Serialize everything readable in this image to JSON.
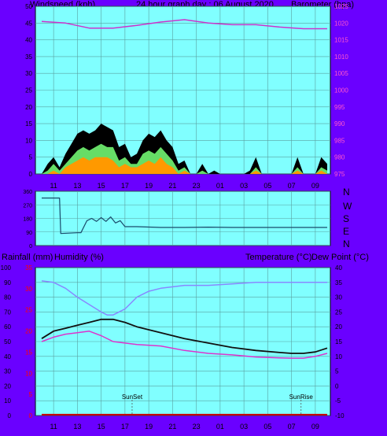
{
  "header": {
    "left": "Windspeed (kph)",
    "center": "24 hour graph day : 06 August 2020",
    "right": "Barometer (hpa)"
  },
  "direction_labels": [
    "N",
    "W",
    "S",
    "E",
    "N"
  ],
  "lower_header": {
    "rain": "Rainfall (mm)",
    "humidity": "Humidity (%)",
    "temp": "Temperature (°C)",
    "dew": "Dew Point (°C)"
  },
  "colors": {
    "background": "#6a00ff",
    "plot": "#80ffff",
    "grid": "#5aa0a0",
    "barometer": "#cc33cc",
    "gust": "#000000",
    "wind_avg": "#66dd66",
    "wind_low": "#ff9900",
    "direction": "#1a4a6a",
    "humidity": "#8888ff",
    "temperature": "#111111",
    "dewpoint": "#dd33cc",
    "rainfall": "#cc0000",
    "axis_left": "#000000",
    "axis_pink": "#ff55cc",
    "axis_red": "#ff0000"
  },
  "chart_data": [
    {
      "type": "line",
      "name": "wind_barometer",
      "x_ticks": [
        "11",
        "13",
        "15",
        "17",
        "19",
        "21",
        "23",
        "01",
        "03",
        "05",
        "07",
        "09"
      ],
      "ylim_left": [
        0,
        50
      ],
      "yticks_left": [
        "0",
        "5",
        "10",
        "15",
        "20",
        "25",
        "30",
        "35",
        "40",
        "45",
        "50"
      ],
      "ylim_right": [
        975,
        1025
      ],
      "yticks_right": [
        "975",
        "980",
        "985",
        "990",
        "995",
        "1000",
        "1005",
        "1010",
        "1015",
        "1020",
        "1025"
      ],
      "series": [
        {
          "key": "barometer",
          "hours": [
            0,
            2,
            4,
            6,
            8,
            10,
            12,
            14,
            16,
            18,
            20,
            22,
            24
          ],
          "values": [
            1020.5,
            1020,
            1018.5,
            1018.5,
            1019.3,
            1020.3,
            1021,
            1020,
            1019.5,
            1019.5,
            1018.8,
            1018.3,
            1018.3
          ]
        },
        {
          "key": "gust",
          "hours": [
            0,
            0.5,
            1,
            1.5,
            2,
            2.5,
            3,
            3.5,
            4,
            4.5,
            5,
            5.5,
            6,
            6.5,
            7,
            7.5,
            8,
            8.5,
            9,
            9.5,
            10,
            10.5,
            11,
            11.5,
            12,
            12.5,
            13,
            13.5,
            14,
            14.5,
            15,
            15.5,
            16,
            16.5,
            17,
            17.5,
            18,
            18.5,
            19,
            19.5,
            20,
            20.5,
            21,
            21.5,
            22,
            22.5,
            23,
            23.5,
            24
          ],
          "values": [
            0,
            3,
            5,
            2,
            6,
            9,
            12,
            13,
            12,
            13,
            15,
            14,
            13,
            8,
            9,
            5,
            6,
            10,
            12,
            11,
            13,
            10,
            8,
            3,
            4,
            0,
            0,
            3,
            0,
            1,
            0,
            0,
            0,
            0,
            0,
            1,
            5,
            0,
            0,
            0,
            0,
            0,
            0,
            5,
            0,
            0,
            0,
            5,
            3
          ]
        },
        {
          "key": "wind_avg",
          "hours": [
            0,
            0.5,
            1,
            1.5,
            2,
            2.5,
            3,
            3.5,
            4,
            4.5,
            5,
            5.5,
            6,
            6.5,
            7,
            7.5,
            8,
            8.5,
            9,
            9.5,
            10,
            10.5,
            11,
            11.5,
            12,
            12.5,
            13,
            13.5,
            14,
            14.5,
            15,
            15.5,
            16,
            16.5,
            17,
            17.5,
            18,
            18.5,
            19,
            19.5,
            20,
            20.5,
            21,
            21.5,
            22,
            22.5,
            23,
            23.5,
            24
          ],
          "values": [
            0,
            1,
            3,
            1,
            3,
            5,
            7,
            8,
            7,
            8,
            9,
            8,
            8,
            4,
            5,
            3,
            3,
            6,
            7,
            6,
            8,
            6,
            4,
            1,
            2,
            0,
            0,
            1,
            0,
            0,
            0,
            0,
            0,
            0,
            0,
            0,
            2,
            0,
            0,
            0,
            0,
            0,
            0,
            2,
            0,
            0,
            0,
            2,
            1
          ]
        },
        {
          "key": "wind_low",
          "hours": [
            0,
            0.5,
            1,
            1.5,
            2,
            2.5,
            3,
            3.5,
            4,
            4.5,
            5,
            5.5,
            6,
            6.5,
            7,
            7.5,
            8,
            8.5,
            9,
            9.5,
            10,
            10.5,
            11,
            11.5,
            12,
            12.5,
            13,
            13.5,
            14,
            14.5,
            15,
            15.5,
            16,
            16.5,
            17,
            17.5,
            18,
            18.5,
            19,
            19.5,
            20,
            20.5,
            21,
            21.5,
            22,
            22.5,
            23,
            23.5,
            24
          ],
          "values": [
            0,
            0,
            1,
            0,
            2,
            3,
            4,
            5,
            4,
            5,
            5,
            5,
            4,
            2,
            3,
            2,
            2,
            3,
            4,
            3,
            5,
            3,
            2,
            0,
            1,
            0,
            0,
            0,
            0,
            0,
            0,
            0,
            0,
            0,
            0,
            0,
            1,
            0,
            0,
            0,
            0,
            0,
            0,
            1,
            0,
            0,
            0,
            1,
            0
          ]
        }
      ]
    },
    {
      "type": "line",
      "name": "wind_direction",
      "ylim": [
        0,
        360
      ],
      "yticks": [
        "0",
        "90",
        "180",
        "270",
        "360"
      ],
      "series": [
        {
          "key": "direction",
          "hours": [
            0,
            1.5,
            1.6,
            3,
            3.3,
            3.8,
            4.2,
            4.6,
            5,
            5.4,
            5.8,
            6.2,
            6.6,
            7,
            8,
            10,
            12,
            14,
            16,
            18,
            20,
            22,
            24
          ],
          "values": [
            315,
            315,
            80,
            85,
            85,
            165,
            180,
            160,
            185,
            160,
            190,
            150,
            165,
            125,
            125,
            120,
            120,
            122,
            120,
            120,
            120,
            120,
            120
          ]
        }
      ]
    },
    {
      "type": "line",
      "name": "temperature_humidity",
      "x_ticks": [
        "11",
        "13",
        "15",
        "17",
        "19",
        "21",
        "23",
        "01",
        "03",
        "05",
        "07",
        "09"
      ],
      "ylim_humidity": [
        0,
        100
      ],
      "yticks_humidity": [
        "0",
        "10",
        "20",
        "30",
        "40",
        "50",
        "60",
        "70",
        "80",
        "90",
        "100"
      ],
      "ylim_rain": [
        0,
        35
      ],
      "yticks_rain": [
        "0",
        "5",
        "10",
        "15",
        "20",
        "25",
        "30",
        "35"
      ],
      "ylim_temp": [
        -10,
        40
      ],
      "yticks_temp": [
        "-10",
        "-5",
        "0",
        "5",
        "10",
        "15",
        "20",
        "25",
        "30",
        "35",
        "40"
      ],
      "annotations": [
        "SunSet",
        "SunRise"
      ],
      "series": [
        {
          "key": "humidity",
          "hours": [
            0,
            1,
            2,
            3,
            4,
            5,
            5.5,
            6,
            7,
            8,
            9,
            10,
            12,
            14,
            16,
            18,
            20,
            22,
            24
          ],
          "values": [
            91,
            90,
            86,
            80,
            75,
            70,
            68,
            68,
            72,
            80,
            84,
            86,
            88,
            88,
            89,
            90,
            90,
            90,
            90
          ]
        },
        {
          "key": "temperature",
          "hours": [
            0,
            1,
            2,
            3,
            4,
            5,
            6,
            7,
            8,
            10,
            12,
            14,
            16,
            18,
            20,
            21,
            22,
            23,
            24
          ],
          "values": [
            16,
            18.5,
            19.5,
            20.5,
            21.5,
            22.5,
            22.5,
            21.5,
            20,
            18,
            16,
            14.5,
            13,
            12,
            11.3,
            11,
            11,
            11.5,
            12.8
          ]
        },
        {
          "key": "dewpoint",
          "hours": [
            0,
            1,
            2,
            3,
            4,
            5,
            6,
            7,
            8,
            10,
            12,
            14,
            16,
            18,
            20,
            21,
            22,
            23,
            24
          ],
          "values": [
            15,
            16.5,
            17.5,
            18,
            18.5,
            17,
            15,
            14.5,
            14,
            13.5,
            12,
            11,
            10.5,
            9.8,
            9.5,
            9.4,
            9.4,
            10,
            11
          ]
        },
        {
          "key": "rainfall",
          "hours": [
            0,
            24
          ],
          "values": [
            0.2,
            0.2
          ]
        }
      ]
    }
  ]
}
